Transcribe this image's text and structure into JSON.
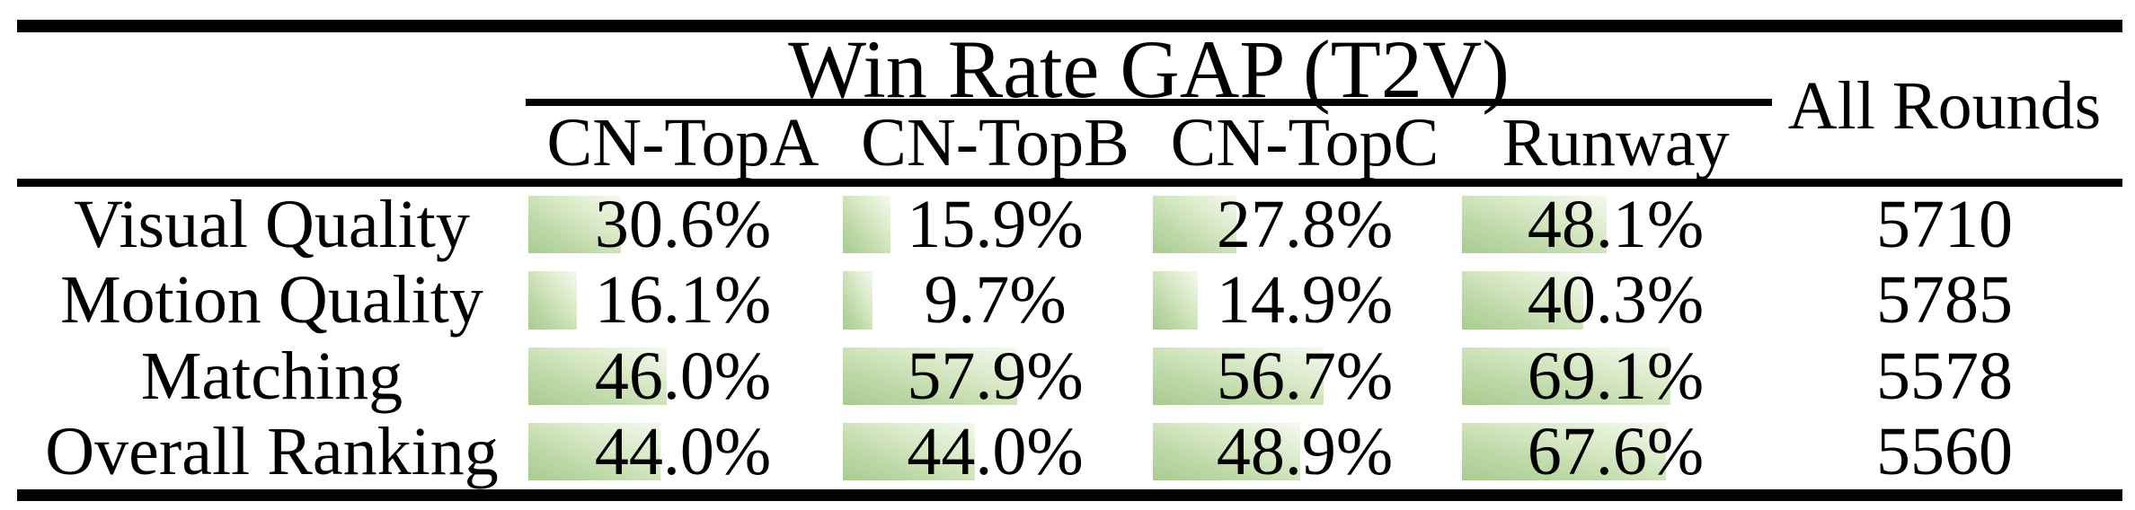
{
  "table": {
    "group_header": "Win Rate GAP (T2V)",
    "all_rounds_header": "All Rounds",
    "columns": [
      "CN-TopA",
      "CN-TopB",
      "CN-TopC",
      "Runway"
    ],
    "rows": [
      {
        "label": "Visual Quality",
        "values": [
          30.6,
          15.9,
          27.8,
          48.1
        ],
        "display": [
          "30.6%",
          "15.9%",
          "27.8%",
          "48.1%"
        ],
        "all_rounds": "5710"
      },
      {
        "label": "Motion Quality",
        "values": [
          16.1,
          9.7,
          14.9,
          40.3
        ],
        "display": [
          "16.1%",
          "9.7%",
          "14.9%",
          "40.3%"
        ],
        "all_rounds": "5785"
      },
      {
        "label": "Matching",
        "values": [
          46.0,
          57.9,
          56.7,
          69.1
        ],
        "display": [
          "46.0%",
          "57.9%",
          "56.7%",
          "69.1%"
        ],
        "all_rounds": "5578"
      },
      {
        "label": "Overall Ranking",
        "values": [
          44.0,
          44.0,
          48.9,
          67.6
        ],
        "display": [
          "44.0%",
          "44.0%",
          "48.9%",
          "67.6%"
        ],
        "all_rounds": "5560"
      }
    ],
    "colors": {
      "bar_gradient": [
        "#a8cc90",
        "#bdd8a7",
        "#d9e9c7",
        "#f4f9ee"
      ],
      "rule": "#000000",
      "text": "#000000",
      "background": "#ffffff"
    }
  },
  "chart_data": {
    "type": "table",
    "title": "Win Rate GAP (T2V)",
    "columns": [
      "CN-TopA",
      "CN-TopB",
      "CN-TopC",
      "Runway",
      "All Rounds"
    ],
    "row_labels": [
      "Visual Quality",
      "Motion Quality",
      "Matching",
      "Overall Ranking"
    ],
    "win_rate_gap_percent": {
      "Visual Quality": [
        30.6,
        15.9,
        27.8,
        48.1
      ],
      "Motion Quality": [
        16.1,
        9.7,
        14.9,
        40.3
      ],
      "Matching": [
        46.0,
        57.9,
        56.7,
        69.1
      ],
      "Overall Ranking": [
        44.0,
        44.0,
        48.9,
        67.6
      ]
    },
    "all_rounds": [
      5710,
      5785,
      5578,
      5560
    ],
    "notes": "Green gradient bars inside cells, width proportional to percentage"
  }
}
